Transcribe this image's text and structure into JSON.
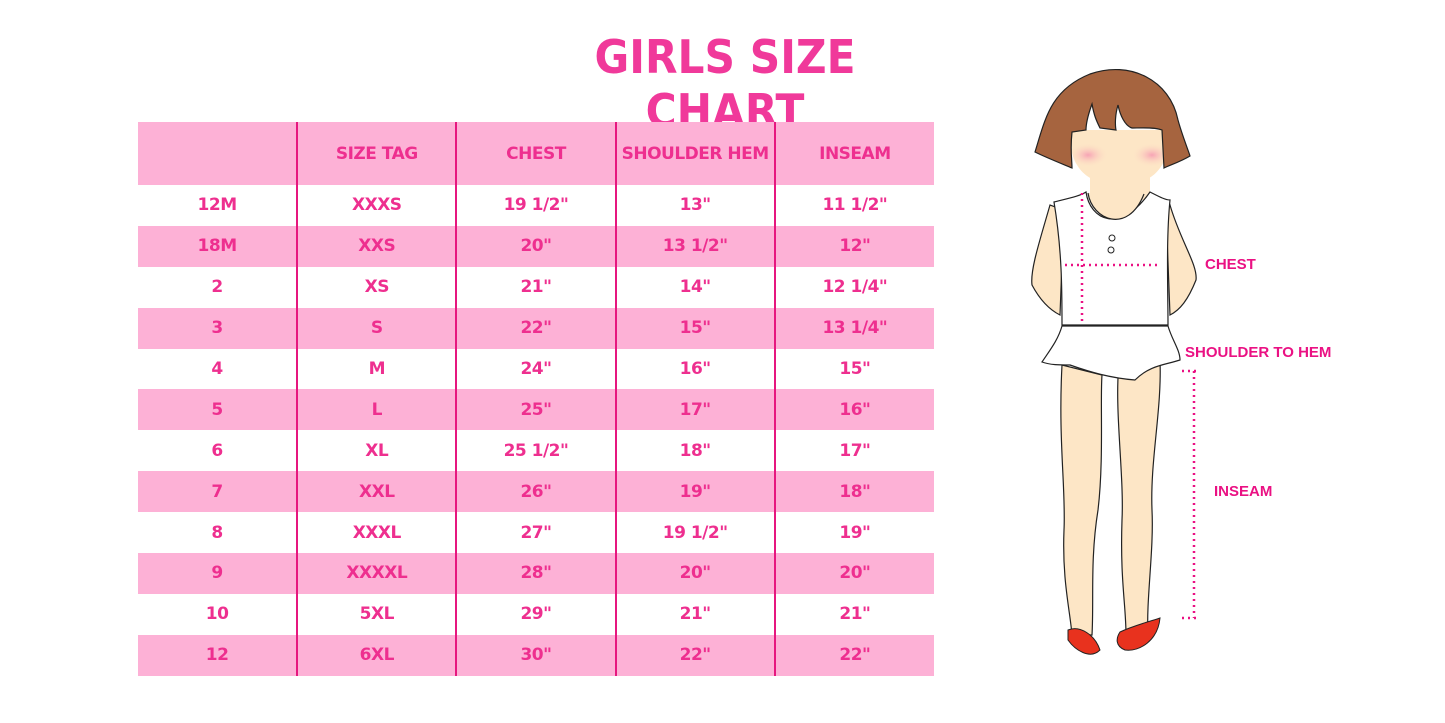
{
  "title": "GIRLS SIZE CHART",
  "table": {
    "headers": [
      "",
      "SIZE TAG",
      "CHEST",
      "SHOULDER HEM",
      "INSEAM"
    ],
    "rows": [
      [
        "12M",
        "XXXS",
        "19 1/2\"",
        "13\"",
        "11 1/2\""
      ],
      [
        "18M",
        "XXS",
        "20\"",
        "13 1/2\"",
        "12\""
      ],
      [
        "2",
        "XS",
        "21\"",
        "14\"",
        "12 1/4\""
      ],
      [
        "3",
        "S",
        "22\"",
        "15\"",
        "13 1/4\""
      ],
      [
        "4",
        "M",
        "24\"",
        "16\"",
        "15\""
      ],
      [
        "5",
        "L",
        "25\"",
        "17\"",
        "16\""
      ],
      [
        "6",
        "XL",
        "25 1/2\"",
        "18\"",
        "17\""
      ],
      [
        "7",
        "XXL",
        "26\"",
        "19\"",
        "18\""
      ],
      [
        "8",
        "XXXL",
        "27\"",
        "19 1/2\"",
        "19\""
      ],
      [
        "9",
        "XXXXL",
        "28\"",
        "20\"",
        "20\""
      ],
      [
        "10",
        "5XL",
        "29\"",
        "21\"",
        "21\""
      ],
      [
        "12",
        "6XL",
        "30\"",
        "22\"",
        "22\""
      ]
    ]
  },
  "diagram": {
    "labels": {
      "chest": "CHEST",
      "shoulder": "SHOULDER TO HEM",
      "inseam": "INSEAM"
    }
  },
  "colors": {
    "accent": "#ee2f8f",
    "row_fill": "#fdb1d6",
    "divider": "#e6177f"
  }
}
